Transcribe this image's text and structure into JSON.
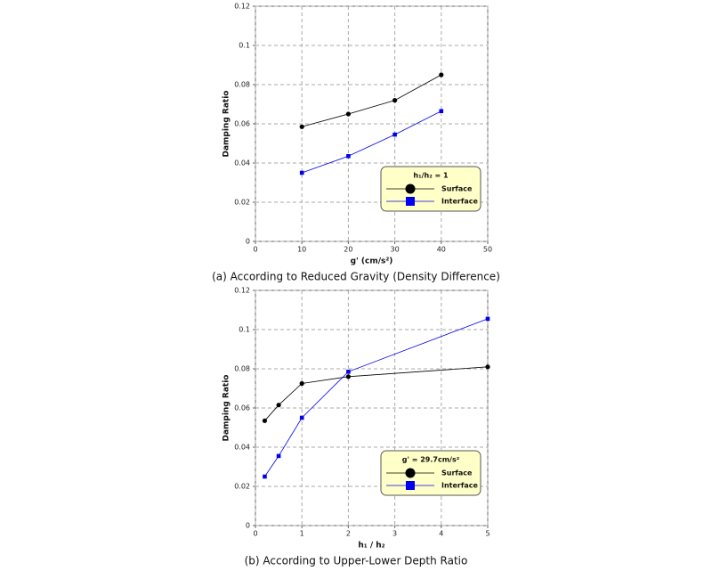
{
  "chart_data": [
    {
      "type": "line",
      "caption": "(a) According to Reduced Gravity (Density Difference)",
      "x_label": "g' (cm/s²)",
      "y_label": "Damping Ratio",
      "x": [
        10,
        20,
        30,
        40
      ],
      "series": [
        {
          "name": "Surface",
          "color": "#000000",
          "marker": "circle",
          "values": [
            0.0585,
            0.065,
            0.072,
            0.085
          ]
        },
        {
          "name": "Interface",
          "color": "#0000ee",
          "marker": "square",
          "values": [
            0.035,
            0.0435,
            0.0545,
            0.0665
          ]
        }
      ],
      "legend_title": "h₁/h₂ = 1",
      "legend": "lower right",
      "xlim": [
        0,
        50
      ],
      "xticks": [
        0,
        10,
        20,
        30,
        40,
        50
      ],
      "ylim": [
        0,
        0.12
      ],
      "yticks": [
        0,
        0.02,
        0.04,
        0.06,
        0.08,
        0.1,
        0.12
      ],
      "grid": true
    },
    {
      "type": "line",
      "caption": "(b) According to Upper-Lower Depth Ratio",
      "x_label": "h₁ / h₂",
      "y_label": "Damping Ratio",
      "x": [
        0.2,
        0.5,
        1,
        2,
        5
      ],
      "series": [
        {
          "name": "Surface",
          "color": "#000000",
          "marker": "circle",
          "values": [
            0.0535,
            0.0615,
            0.0725,
            0.076,
            0.081
          ]
        },
        {
          "name": "Interface",
          "color": "#0000ee",
          "marker": "square",
          "values": [
            0.025,
            0.0355,
            0.055,
            0.0785,
            0.1055
          ]
        }
      ],
      "legend_title": "g' = 29.7cm/s²",
      "legend": "lower right",
      "xlim": [
        0,
        5
      ],
      "xticks": [
        0,
        1,
        2,
        3,
        4,
        5
      ],
      "ylim": [
        0,
        0.12
      ],
      "yticks": [
        0,
        0.02,
        0.04,
        0.06,
        0.08,
        0.1,
        0.12
      ],
      "grid": true
    }
  ]
}
